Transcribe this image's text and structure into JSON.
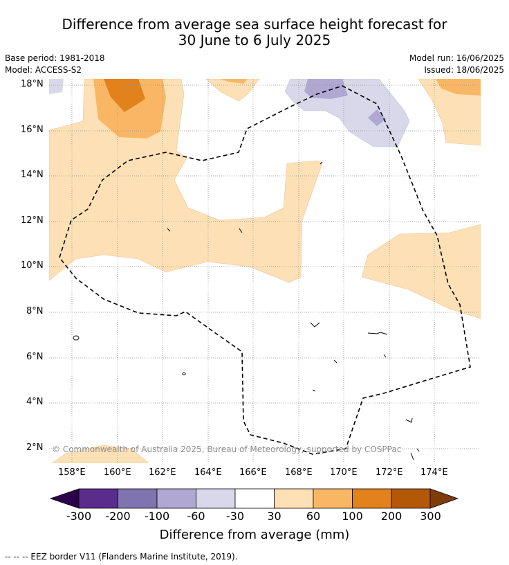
{
  "header": {
    "title_line1": "Difference from average sea surface height forecast for",
    "title_line2": "30 June to 6 July 2025",
    "base_period": "Base period: 1981-2018",
    "model": "Model: ACCESS-S2",
    "model_run": "Model run: 16/06/2025",
    "issued": "Issued: 18/06/2025"
  },
  "map": {
    "lat_labels": [
      "18°N",
      "16°N",
      "14°N",
      "12°N",
      "10°N",
      "8°N",
      "6°N",
      "4°N",
      "2°N"
    ],
    "lon_labels": [
      "158°E",
      "160°E",
      "162°E",
      "164°E",
      "166°E",
      "168°E",
      "170°E",
      "172°E",
      "174°E"
    ],
    "copyright": "© Commonwealth of Australia 2025, Bureau of Meteorology, supported by COSPPac"
  },
  "colorbar": {
    "tick_labels": [
      "-300",
      "-200",
      "-100",
      "-60",
      "-30",
      "30",
      "60",
      "100",
      "200",
      "300"
    ],
    "colors": [
      "#2d004b",
      "#5a2c8c",
      "#8074b0",
      "#b0a8d2",
      "#d8d8ea",
      "#ffffff",
      "#fde0b5",
      "#f9b766",
      "#e2821c",
      "#b35806",
      "#7f3b08"
    ],
    "title": "Difference from average (mm)"
  },
  "footer": {
    "legend_text": "-- -- -- EEZ border V11 (Flanders Marine Institute, 2019)."
  }
}
